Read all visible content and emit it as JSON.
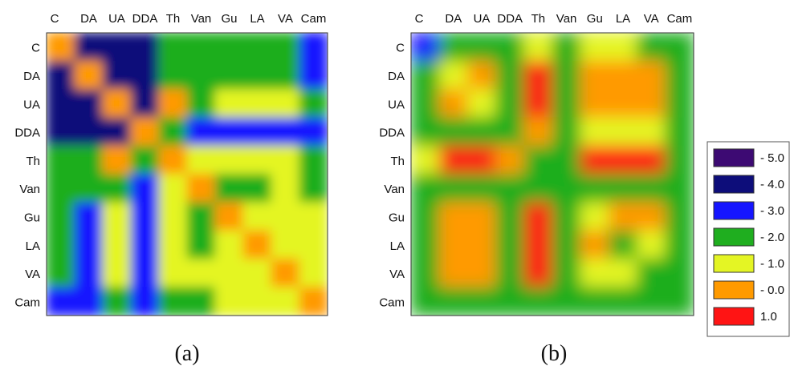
{
  "chart_data": [
    {
      "type": "heatmap",
      "panel_label": "(a)",
      "x_categories": [
        "C",
        "DA",
        "UA",
        "DDA",
        "Th",
        "Van",
        "Gu",
        "LA",
        "VA",
        "Cam"
      ],
      "y_categories": [
        "C",
        "DA",
        "UA",
        "DDA",
        "Th",
        "Van",
        "Gu",
        "LA",
        "VA",
        "Cam"
      ],
      "values": [
        [
          0,
          -4,
          -4,
          -4.5,
          -2,
          -2.5,
          -2,
          -2,
          -2,
          -3
        ],
        [
          -4,
          0,
          -4.5,
          -4.5,
          -2,
          -2,
          -2,
          -2,
          -2,
          -3
        ],
        [
          -4,
          -4.5,
          0,
          -4,
          0,
          -2,
          -1,
          -1,
          -1,
          -2
        ],
        [
          -4.5,
          -4.5,
          -4,
          0,
          -2,
          -3,
          -3,
          -3,
          -3,
          -3
        ],
        [
          -2,
          -2,
          0,
          -2,
          0,
          -1,
          -1,
          -1,
          -1,
          -2
        ],
        [
          -2.5,
          -2,
          -2,
          -3,
          -1,
          0,
          -2,
          -2,
          -1,
          -2
        ],
        [
          -2,
          -3,
          -1,
          -3,
          -1,
          -2,
          0,
          -1,
          -1,
          -1
        ],
        [
          -2,
          -3,
          -1,
          -3,
          -1,
          -2,
          -1,
          0,
          -1,
          -1
        ],
        [
          -2,
          -3,
          -1,
          -3,
          -1,
          -1,
          -1,
          -1,
          0,
          -1
        ],
        [
          -3,
          -3,
          -2,
          -3,
          -2,
          -2,
          -1,
          -1,
          -1,
          0
        ]
      ]
    },
    {
      "type": "heatmap",
      "panel_label": "(b)",
      "x_categories": [
        "C",
        "DA",
        "UA",
        "DDA",
        "Th",
        "Van",
        "Gu",
        "LA",
        "VA",
        "Cam"
      ],
      "y_categories": [
        "C",
        "DA",
        "UA",
        "DDA",
        "Th",
        "Van",
        "Gu",
        "LA",
        "VA",
        "Cam"
      ],
      "values": [
        [
          -3,
          -2,
          -2,
          -2,
          -1,
          -2,
          -1,
          -1,
          -2,
          -2
        ],
        [
          -2,
          -1,
          -0.5,
          -2,
          0.7,
          -2,
          -0.5,
          -0.5,
          -0.5,
          -2
        ],
        [
          -2,
          -0.5,
          -1,
          -2,
          1,
          -2,
          0,
          0,
          0,
          -2
        ],
        [
          -2,
          -2,
          -2,
          -2,
          0.3,
          -2,
          -1,
          -1,
          -1,
          -2
        ],
        [
          -1,
          0.5,
          1,
          0.3,
          -2,
          -2,
          0.5,
          1,
          0.5,
          -2
        ],
        [
          -2,
          -2,
          -2,
          -2,
          -2,
          -2,
          -2,
          -2,
          -2,
          -2
        ],
        [
          -2,
          0,
          0,
          -2,
          0.5,
          -2,
          -1,
          -0.5,
          -0.5,
          -2
        ],
        [
          -2,
          0,
          0,
          -2,
          1,
          -2,
          -0.5,
          -2,
          -1,
          -2
        ],
        [
          -2,
          -0.5,
          -0.5,
          -2,
          0.5,
          -2,
          -1,
          -1,
          -2,
          -2
        ],
        [
          -2,
          -2,
          -2,
          -2,
          -2,
          -2,
          -2,
          -2,
          -2,
          -2
        ]
      ]
    }
  ],
  "legend": {
    "placement": "right",
    "entries": [
      {
        "label": "- 5.0",
        "color": "#3d0a73"
      },
      {
        "label": "- 4.0",
        "color": "#0d0d7a"
      },
      {
        "label": "- 3.0",
        "color": "#1515ff"
      },
      {
        "label": "- 2.0",
        "color": "#1fae1f"
      },
      {
        "label": "- 1.0",
        "color": "#e4f524"
      },
      {
        "label": "- 0.0",
        "color": "#ff9a00"
      },
      {
        "label": "1.0",
        "color": "#ff1414"
      }
    ]
  }
}
